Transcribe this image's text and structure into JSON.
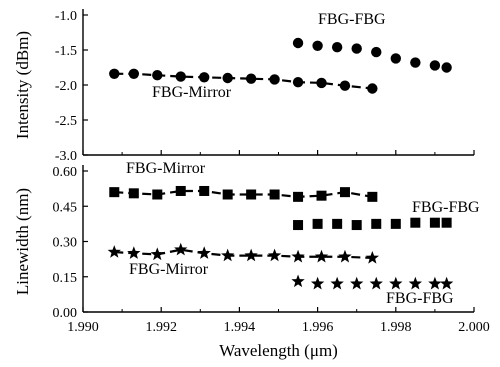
{
  "chart_data": [
    {
      "type": "scatter",
      "ylabel": "Intensity (dBm)",
      "ylim": [
        -3.0,
        -1.0
      ],
      "yticks": [
        -1.0,
        -1.5,
        -2.0,
        -2.5,
        -3.0
      ],
      "ytick_labels": [
        "-1.0",
        "-1.5",
        "-2.0",
        "-2.5",
        "-3.0"
      ],
      "series": [
        {
          "label": "FBG-FBG",
          "marker": "circle",
          "line": false,
          "x": [
            1.9955,
            1.996,
            1.9965,
            1.997,
            1.9975,
            1.998,
            1.9985,
            1.999,
            1.9993
          ],
          "y": [
            -1.4,
            -1.44,
            -1.46,
            -1.48,
            -1.53,
            -1.62,
            -1.68,
            -1.72,
            -1.75
          ]
        },
        {
          "label": "FBG-Mirror",
          "marker": "circle",
          "line": true,
          "x": [
            1.9908,
            1.9913,
            1.9919,
            1.9925,
            1.9931,
            1.9937,
            1.9943,
            1.9949,
            1.9955,
            1.9961,
            1.9967,
            1.9974
          ],
          "y": [
            -1.84,
            -1.84,
            -1.86,
            -1.88,
            -1.89,
            -1.9,
            -1.91,
            -1.92,
            -1.96,
            -1.97,
            -2.01,
            -2.05
          ]
        }
      ],
      "annotations": [
        {
          "text": "FBG-FBG",
          "series": 0
        },
        {
          "text": "FBG-Mirror",
          "series": 1
        }
      ]
    },
    {
      "type": "scatter",
      "xlabel": "Wavelength (μm)",
      "ylabel": "Linewidth (nm)",
      "xlim": [
        1.99,
        2.0
      ],
      "ylim": [
        0.0,
        0.6
      ],
      "xticks": [
        1.99,
        1.992,
        1.994,
        1.996,
        1.998,
        2.0
      ],
      "xtick_labels": [
        "1.990",
        "1.992",
        "1.994",
        "1.996",
        "1.998",
        "2.000"
      ],
      "yticks": [
        0.0,
        0.15,
        0.3,
        0.45,
        0.6
      ],
      "ytick_labels": [
        "0.00",
        "0.15",
        "0.30",
        "0.45",
        "0.60"
      ],
      "series": [
        {
          "label": "FBG-Mirror",
          "marker": "square",
          "line": true,
          "x": [
            1.9908,
            1.9913,
            1.9919,
            1.9925,
            1.9931,
            1.9937,
            1.9943,
            1.9949,
            1.9955,
            1.9961,
            1.9967,
            1.9974
          ],
          "y": [
            0.51,
            0.505,
            0.5,
            0.515,
            0.515,
            0.5,
            0.5,
            0.5,
            0.49,
            0.495,
            0.51,
            0.49
          ]
        },
        {
          "label": "FBG-FBG",
          "marker": "square",
          "line": false,
          "x": [
            1.9955,
            1.996,
            1.9965,
            1.997,
            1.9975,
            1.998,
            1.9985,
            1.999,
            1.9993
          ],
          "y": [
            0.37,
            0.375,
            0.375,
            0.37,
            0.375,
            0.375,
            0.38,
            0.38,
            0.38
          ]
        },
        {
          "label": "FBG-Mirror",
          "marker": "star",
          "line": true,
          "x": [
            1.9908,
            1.9913,
            1.9919,
            1.9925,
            1.9931,
            1.9937,
            1.9943,
            1.9949,
            1.9955,
            1.9961,
            1.9967,
            1.9974
          ],
          "y": [
            0.255,
            0.25,
            0.245,
            0.265,
            0.25,
            0.24,
            0.24,
            0.24,
            0.235,
            0.235,
            0.235,
            0.23
          ]
        },
        {
          "label": "FBG-FBG",
          "marker": "star",
          "line": false,
          "x": [
            1.9955,
            1.996,
            1.9965,
            1.997,
            1.9975,
            1.998,
            1.9985,
            1.999,
            1.9993
          ],
          "y": [
            0.13,
            0.12,
            0.12,
            0.12,
            0.12,
            0.12,
            0.12,
            0.12,
            0.12
          ]
        }
      ],
      "annotations": [
        {
          "text": "FBG-Mirror",
          "series": 0
        },
        {
          "text": "FBG-FBG",
          "series": 1
        },
        {
          "text": "FBG-Mirror",
          "series": 2
        },
        {
          "text": "FBG-FBG",
          "series": 3
        }
      ]
    }
  ]
}
